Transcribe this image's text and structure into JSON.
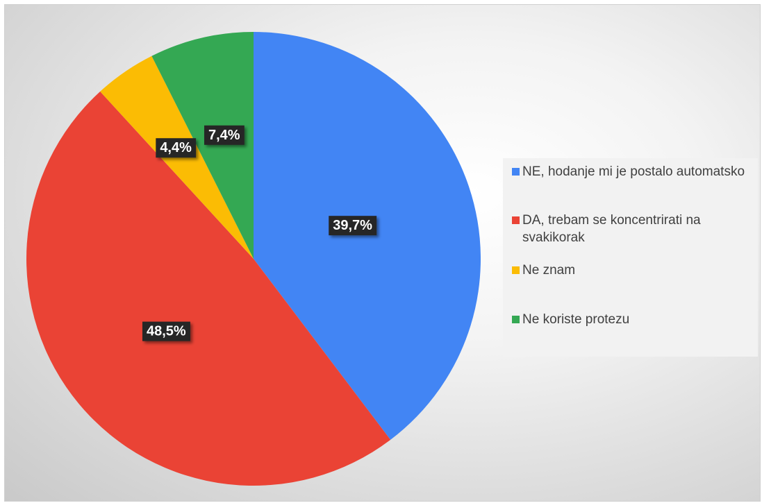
{
  "chart_data": {
    "type": "pie",
    "title": "",
    "legend_position": "right",
    "slices": [
      {
        "label": "NE, hodanje mi je postalo automatsko",
        "value": 39.7,
        "display": "39,7%",
        "color": "#4285f4"
      },
      {
        "label": "DA, trebam se koncentrirati na svakikorak",
        "value": 48.5,
        "display": "48,5%",
        "color": "#ea4335"
      },
      {
        "label": "Ne znam",
        "value": 4.4,
        "display": "4,4%",
        "color": "#fbbc04"
      },
      {
        "label": "Ne koriste protezu",
        "value": 7.4,
        "display": "7,4%",
        "color": "#34a853"
      }
    ],
    "data_label_background": "#262626"
  }
}
